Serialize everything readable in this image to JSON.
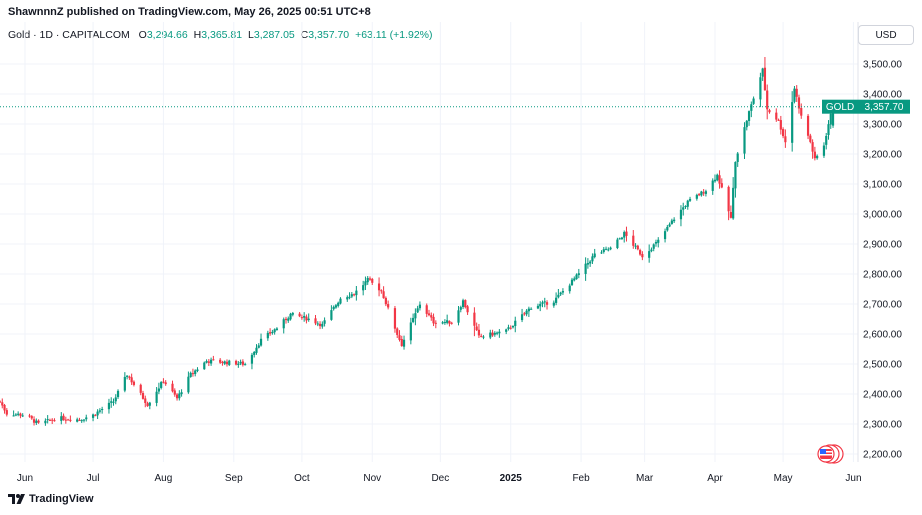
{
  "header": {
    "published_text": "ShawnnnZ published on TradingView.com, May 26, 2025 00:51 UTC+8"
  },
  "legend": {
    "symbol": "Gold · 1D · CAPITALCOM",
    "o_label": "O",
    "o_value": "3,294.66",
    "h_label": "H",
    "h_value": "3,365.81",
    "l_label": "L",
    "l_value": "3,287.05",
    "c_label": "C",
    "c_value": "3,357.70",
    "change": "+63.11 (+1.92%)"
  },
  "currency_button": "USD",
  "footer": {
    "brand": "TradingView"
  },
  "colors": {
    "up": "#089981",
    "down": "#f23645",
    "grid": "#f0f3fa",
    "axis_text": "#131722"
  },
  "chart_data": {
    "type": "candlestick",
    "series_name": "GOLD",
    "last_price_label": "GOLD",
    "last_price": 3357.7,
    "last_price_text": "3,357.70",
    "y_ticks": [
      "3,500.00",
      "3,400.00",
      "3,300.00",
      "3,200.00",
      "3,100.00",
      "3,000.00",
      "2,900.00",
      "2,800.00",
      "2,700.00",
      "2,600.00",
      "2,500.00",
      "2,400.00",
      "2,300.00",
      "2,200.00"
    ],
    "y_tick_values": [
      3500,
      3400,
      3300,
      3200,
      3100,
      3000,
      2900,
      2800,
      2700,
      2600,
      2500,
      2400,
      2300,
      2200
    ],
    "ylim": [
      2170,
      3560
    ],
    "x_ticks": [
      "Jun",
      "Jul",
      "Aug",
      "Sep",
      "Oct",
      "Nov",
      "Dec",
      "2025",
      "Feb",
      "Mar",
      "Apr",
      "May",
      "Jun"
    ],
    "x_tick_dates": [
      "2024-06-01",
      "2024-07-01",
      "2024-08-01",
      "2024-09-01",
      "2024-10-01",
      "2024-11-01",
      "2024-12-01",
      "2025-01-01",
      "2025-02-01",
      "2025-03-01",
      "2025-04-01",
      "2025-05-01",
      "2025-06-01"
    ],
    "xlim": [
      "2024-05-21",
      "2025-06-03"
    ],
    "trend_closes": [
      [
        "2024-05-21",
        2375
      ],
      [
        "2024-05-24",
        2335
      ],
      [
        "2024-06-01",
        2330
      ],
      [
        "2024-06-07",
        2300
      ],
      [
        "2024-06-15",
        2320
      ],
      [
        "2024-06-25",
        2315
      ],
      [
        "2024-07-01",
        2330
      ],
      [
        "2024-07-10",
        2375
      ],
      [
        "2024-07-16",
        2465
      ],
      [
        "2024-07-25",
        2365
      ],
      [
        "2024-08-01",
        2445
      ],
      [
        "2024-08-07",
        2385
      ],
      [
        "2024-08-13",
        2465
      ],
      [
        "2024-08-20",
        2510
      ],
      [
        "2024-08-30",
        2505
      ],
      [
        "2024-09-06",
        2500
      ],
      [
        "2024-09-13",
        2580
      ],
      [
        "2024-09-20",
        2620
      ],
      [
        "2024-09-26",
        2665
      ],
      [
        "2024-10-04",
        2650
      ],
      [
        "2024-10-10",
        2630
      ],
      [
        "2024-10-18",
        2720
      ],
      [
        "2024-10-24",
        2735
      ],
      [
        "2024-10-30",
        2780
      ],
      [
        "2024-11-05",
        2745
      ],
      [
        "2024-11-12",
        2600
      ],
      [
        "2024-11-14",
        2565
      ],
      [
        "2024-11-22",
        2700
      ],
      [
        "2024-11-28",
        2640
      ],
      [
        "2024-12-06",
        2640
      ],
      [
        "2024-12-11",
        2710
      ],
      [
        "2024-12-18",
        2590
      ],
      [
        "2024-12-30",
        2610
      ],
      [
        "2025-01-10",
        2690
      ],
      [
        "2025-01-20",
        2710
      ],
      [
        "2025-01-31",
        2800
      ],
      [
        "2025-02-07",
        2865
      ],
      [
        "2025-02-14",
        2885
      ],
      [
        "2025-02-20",
        2935
      ],
      [
        "2025-02-28",
        2860
      ],
      [
        "2025-03-07",
        2910
      ],
      [
        "2025-03-14",
        2985
      ],
      [
        "2025-03-20",
        3040
      ],
      [
        "2025-03-28",
        3080
      ],
      [
        "2025-04-02",
        3130
      ],
      [
        "2025-04-08",
        2985
      ],
      [
        "2025-04-10",
        3180
      ],
      [
        "2025-04-16",
        3340
      ],
      [
        "2025-04-22",
        3480
      ],
      [
        "2025-04-24",
        3350
      ],
      [
        "2025-04-29",
        3310
      ],
      [
        "2025-05-02",
        3240
      ],
      [
        "2025-05-06",
        3420
      ],
      [
        "2025-05-09",
        3325
      ],
      [
        "2025-05-13",
        3240
      ],
      [
        "2025-05-15",
        3180
      ],
      [
        "2025-05-19",
        3230
      ],
      [
        "2025-05-21",
        3300
      ],
      [
        "2025-05-23",
        3357.7
      ]
    ]
  }
}
